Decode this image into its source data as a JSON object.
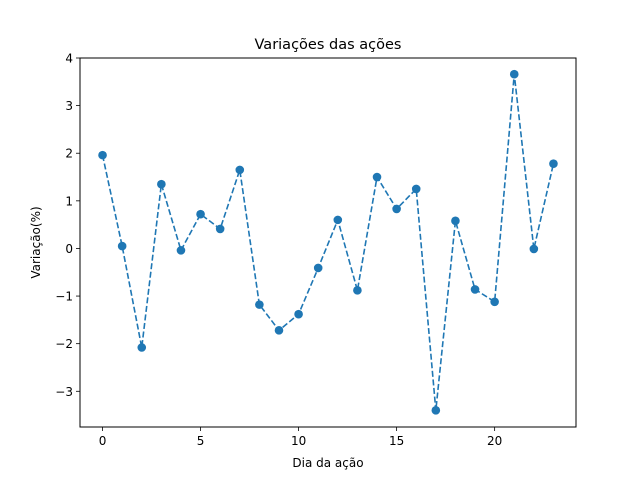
{
  "chart_data": {
    "type": "line",
    "title": "Variações das ações",
    "xlabel": "Dia da ação",
    "ylabel": "Variação(%)",
    "x": [
      0,
      1,
      2,
      3,
      4,
      5,
      6,
      7,
      8,
      9,
      10,
      11,
      12,
      13,
      14,
      15,
      16,
      17,
      18,
      19,
      20,
      21,
      22,
      23
    ],
    "series": [
      {
        "values": [
          1.96,
          0.05,
          -2.08,
          1.35,
          -0.04,
          0.72,
          0.41,
          1.65,
          -1.18,
          -1.72,
          -1.38,
          -0.41,
          0.6,
          -0.88,
          1.5,
          0.83,
          1.25,
          -3.4,
          0.58,
          -0.86,
          -1.12,
          3.66,
          -0.01,
          1.78
        ],
        "color": "#1f77b4",
        "linestyle": "dashed",
        "marker": "circle"
      }
    ],
    "xlim": [
      -1.15,
      24.15
    ],
    "ylim": [
      -3.75,
      4.0
    ],
    "xticks": [
      0,
      5,
      10,
      15,
      20
    ],
    "yticks": [
      -3,
      -2,
      -1,
      0,
      1,
      2,
      3,
      4
    ],
    "xtick_labels": [
      "0",
      "5",
      "10",
      "15",
      "20"
    ],
    "ytick_labels": [
      "−3",
      "−2",
      "−1",
      "0",
      "1",
      "2",
      "3",
      "4"
    ],
    "grid": false,
    "legend": "none"
  }
}
